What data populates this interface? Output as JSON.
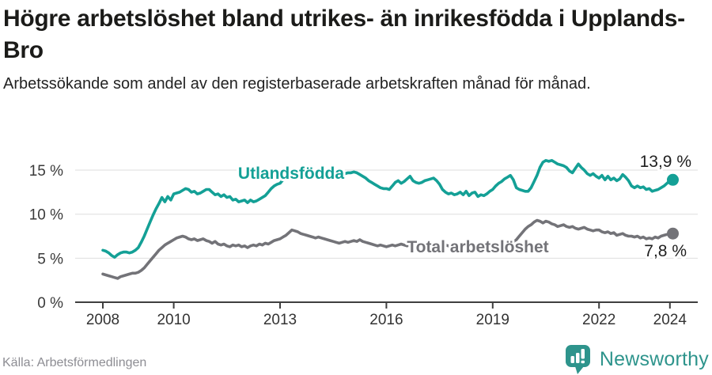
{
  "footer": {
    "brand": "Newsworthy"
  },
  "colors": {
    "accent_teal": "#14a096",
    "series_gray": "#737378",
    "brand_teal": "#2e948c",
    "axis": "#3f3f3f",
    "grid": "#dedede",
    "label_dark": "#1f1f1f",
    "source_gray": "#8d8d93"
  },
  "chart_data": {
    "type": "line",
    "title": "Högre arbetslöshet bland utrikes- än inrikesfödda i Upplands-Bro",
    "subtitle": "Arbetssökande som andel av den registerbaserade arbetskraften månad för månad.",
    "source": "Källa: Arbetsförmedlingen",
    "unit": "%",
    "x_start_year": 2008,
    "points_per_year": 12,
    "grid": "horizontal",
    "legend_position": "inline-labels",
    "x_axis": {
      "tick_years": [
        2008,
        2010,
        2013,
        2016,
        2019,
        2022,
        2024
      ],
      "tick_labels": [
        "2008",
        "2010",
        "2013",
        "2016",
        "2019",
        "2022",
        "2024"
      ]
    },
    "y_axis": {
      "tick_values": [
        0,
        5,
        10,
        15
      ],
      "tick_labels": [
        "0 %",
        "5 %",
        "10 %",
        "15 %"
      ],
      "range": [
        0,
        17
      ]
    },
    "series": [
      {
        "name": "Utlandsfödda",
        "color": "#14a096",
        "end_label": "13,9 %",
        "end_value": 13.9,
        "values": [
          5.9,
          5.8,
          5.6,
          5.3,
          5.1,
          5.4,
          5.6,
          5.7,
          5.7,
          5.6,
          5.7,
          5.9,
          6.2,
          6.8,
          7.5,
          8.3,
          9.1,
          9.9,
          10.6,
          11.2,
          11.9,
          11.4,
          12.0,
          11.6,
          12.3,
          12.4,
          12.5,
          12.7,
          12.9,
          12.8,
          12.5,
          12.6,
          12.3,
          12.4,
          12.6,
          12.8,
          12.8,
          12.5,
          12.2,
          12.3,
          12.0,
          12.2,
          11.9,
          12.0,
          11.6,
          11.7,
          11.4,
          11.5,
          11.6,
          11.3,
          11.6,
          11.4,
          11.5,
          11.7,
          11.9,
          12.1,
          12.5,
          12.9,
          13.2,
          13.4,
          13.5,
          13.9,
          14.2,
          14.0,
          14.3,
          14.5,
          14.4,
          14.3,
          14.5,
          14.6,
          14.5,
          14.4,
          14.4,
          14.5,
          14.6,
          14.5,
          14.4,
          14.5,
          14.6,
          14.5,
          14.6,
          14.7,
          14.6,
          14.7,
          14.7,
          14.8,
          14.7,
          14.5,
          14.3,
          14.1,
          13.8,
          13.6,
          13.4,
          13.2,
          13.0,
          12.9,
          12.9,
          12.8,
          13.2,
          13.6,
          13.8,
          13.5,
          13.7,
          14.0,
          14.3,
          13.8,
          13.6,
          13.5,
          13.6,
          13.8,
          13.9,
          14.0,
          14.1,
          13.8,
          13.4,
          12.8,
          12.5,
          12.3,
          12.4,
          12.2,
          12.3,
          12.5,
          12.2,
          12.6,
          12.1,
          12.4,
          12.5,
          12.0,
          12.2,
          12.1,
          12.3,
          12.6,
          12.8,
          13.2,
          13.5,
          13.7,
          14.0,
          14.2,
          14.4,
          13.9,
          13.0,
          12.8,
          12.7,
          12.6,
          12.6,
          13.0,
          13.7,
          14.4,
          15.3,
          15.9,
          16.1,
          16.0,
          16.1,
          15.9,
          15.7,
          15.6,
          15.5,
          15.3,
          14.9,
          14.7,
          15.2,
          15.7,
          15.3,
          15.0,
          14.6,
          14.4,
          14.6,
          14.3,
          14.1,
          14.4,
          13.9,
          14.3,
          13.9,
          14.1,
          13.8,
          14.0,
          14.5,
          14.2,
          13.8,
          13.2,
          13.0,
          13.2,
          13.0,
          13.1,
          12.8,
          12.9,
          12.6,
          12.7,
          12.8,
          13.0,
          13.2,
          13.5,
          13.8,
          13.9
        ]
      },
      {
        "name": "Total arbetslöshet",
        "color": "#737378",
        "end_label": "7,8 %",
        "end_value": 7.8,
        "values": [
          3.2,
          3.1,
          3.0,
          2.9,
          2.8,
          2.7,
          2.9,
          3.0,
          3.1,
          3.2,
          3.3,
          3.3,
          3.4,
          3.6,
          3.9,
          4.3,
          4.7,
          5.1,
          5.5,
          5.9,
          6.2,
          6.5,
          6.7,
          6.9,
          7.1,
          7.3,
          7.4,
          7.5,
          7.4,
          7.2,
          7.1,
          7.2,
          7.0,
          7.1,
          7.2,
          7.0,
          6.9,
          6.7,
          6.9,
          6.6,
          6.5,
          6.6,
          6.4,
          6.3,
          6.5,
          6.4,
          6.5,
          6.3,
          6.4,
          6.2,
          6.4,
          6.5,
          6.4,
          6.6,
          6.5,
          6.7,
          6.6,
          6.8,
          7.0,
          7.1,
          7.2,
          7.4,
          7.6,
          7.9,
          8.2,
          8.1,
          8.0,
          7.8,
          7.7,
          7.6,
          7.5,
          7.4,
          7.3,
          7.4,
          7.3,
          7.2,
          7.1,
          7.0,
          6.9,
          6.8,
          6.7,
          6.8,
          6.9,
          6.8,
          6.9,
          7.0,
          6.9,
          7.1,
          6.9,
          6.8,
          6.7,
          6.6,
          6.5,
          6.4,
          6.5,
          6.4,
          6.3,
          6.4,
          6.5,
          6.4,
          6.5,
          6.6,
          6.5,
          6.4,
          6.5,
          6.6,
          6.5,
          6.6,
          6.5,
          6.6,
          6.5,
          6.4,
          6.5,
          6.4,
          6.3,
          6.4,
          6.5,
          6.4,
          6.5,
          6.4,
          6.3,
          6.4,
          6.3,
          6.2,
          6.3,
          6.4,
          6.3,
          6.2,
          6.3,
          6.4,
          6.3,
          6.4,
          6.3,
          6.3,
          6.4,
          6.4,
          6.5,
          6.5,
          6.6,
          6.8,
          7.1,
          7.5,
          7.9,
          8.3,
          8.6,
          8.8,
          9.1,
          9.3,
          9.2,
          9.0,
          9.2,
          9.1,
          8.9,
          8.8,
          8.6,
          8.7,
          8.8,
          8.6,
          8.5,
          8.6,
          8.4,
          8.3,
          8.4,
          8.5,
          8.3,
          8.2,
          8.1,
          8.2,
          8.2,
          8.0,
          7.9,
          8.0,
          7.8,
          7.9,
          7.6,
          7.7,
          7.8,
          7.6,
          7.5,
          7.5,
          7.4,
          7.5,
          7.3,
          7.4,
          7.2,
          7.3,
          7.2,
          7.4,
          7.3,
          7.5,
          7.6,
          7.7,
          7.8,
          7.8
        ]
      }
    ]
  }
}
